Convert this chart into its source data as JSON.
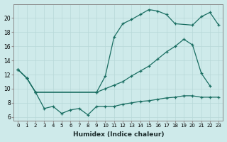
{
  "xlabel": "Humidex (Indice chaleur)",
  "bg_color": "#ceeaea",
  "line_color": "#1a6e62",
  "xlim": [
    -0.5,
    23.5
  ],
  "ylim": [
    5.5,
    22
  ],
  "xticks": [
    0,
    1,
    2,
    3,
    4,
    5,
    6,
    7,
    8,
    9,
    10,
    11,
    12,
    13,
    14,
    15,
    16,
    17,
    18,
    19,
    20,
    21,
    22,
    23
  ],
  "yticks": [
    6,
    8,
    10,
    12,
    14,
    16,
    18,
    20
  ],
  "series": [
    {
      "x": [
        0,
        1,
        2,
        9,
        10,
        11,
        12,
        13,
        14,
        15,
        16,
        17,
        18,
        20,
        21,
        22,
        23
      ],
      "y": [
        12.7,
        11.5,
        9.5,
        9.5,
        11.8,
        17.3,
        19.2,
        19.8,
        20.5,
        21.2,
        21.0,
        20.5,
        19.2,
        19.0,
        20.2,
        20.8,
        19.0
      ]
    },
    {
      "x": [
        0,
        1,
        2,
        9,
        10,
        11,
        12,
        13,
        14,
        15,
        16,
        17,
        18,
        19,
        20,
        21,
        22
      ],
      "y": [
        12.7,
        11.5,
        9.5,
        9.5,
        10.0,
        10.5,
        11.0,
        11.8,
        12.5,
        13.2,
        14.2,
        15.2,
        16.0,
        17.0,
        16.2,
        12.2,
        10.4
      ]
    },
    {
      "x": [
        0,
        1,
        2,
        3,
        4,
        5,
        6,
        7,
        8,
        9,
        10,
        11,
        12,
        13,
        14,
        15,
        16,
        17,
        18,
        19,
        20,
        21,
        22,
        23
      ],
      "y": [
        12.7,
        11.5,
        9.5,
        7.2,
        7.5,
        6.5,
        7.0,
        7.2,
        6.3,
        7.5,
        7.5,
        7.5,
        7.8,
        8.0,
        8.2,
        8.3,
        8.5,
        8.7,
        8.8,
        9.0,
        9.0,
        8.8,
        8.8,
        8.8
      ]
    }
  ]
}
